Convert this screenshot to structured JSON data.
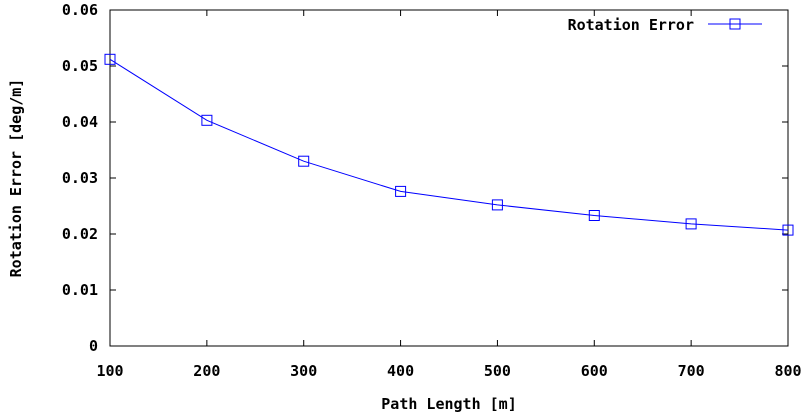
{
  "chart_data": {
    "type": "line",
    "x": [
      100,
      200,
      300,
      400,
      500,
      600,
      700,
      800
    ],
    "series": [
      {
        "name": "Rotation Error",
        "values": [
          0.0512,
          0.0403,
          0.033,
          0.0276,
          0.0252,
          0.0233,
          0.0218,
          0.0207
        ],
        "color": "#0000ff",
        "marker": "square"
      }
    ],
    "xlabel": "Path Length [m]",
    "ylabel": "Rotation Error [deg/m]",
    "xlim": [
      100,
      800
    ],
    "ylim": [
      0,
      0.06
    ],
    "xticks": [
      100,
      200,
      300,
      400,
      500,
      600,
      700,
      800
    ],
    "xtick_labels": [
      "100",
      "200",
      "300",
      "400",
      "500",
      "600",
      "700",
      "800"
    ],
    "yticks": [
      0,
      0.01,
      0.02,
      0.03,
      0.04,
      0.05,
      0.06
    ],
    "ytick_labels": [
      "0",
      "0.01",
      "0.02",
      "0.03",
      "0.04",
      "0.05",
      "0.06"
    ],
    "grid": false,
    "legend_position": "top-right"
  }
}
